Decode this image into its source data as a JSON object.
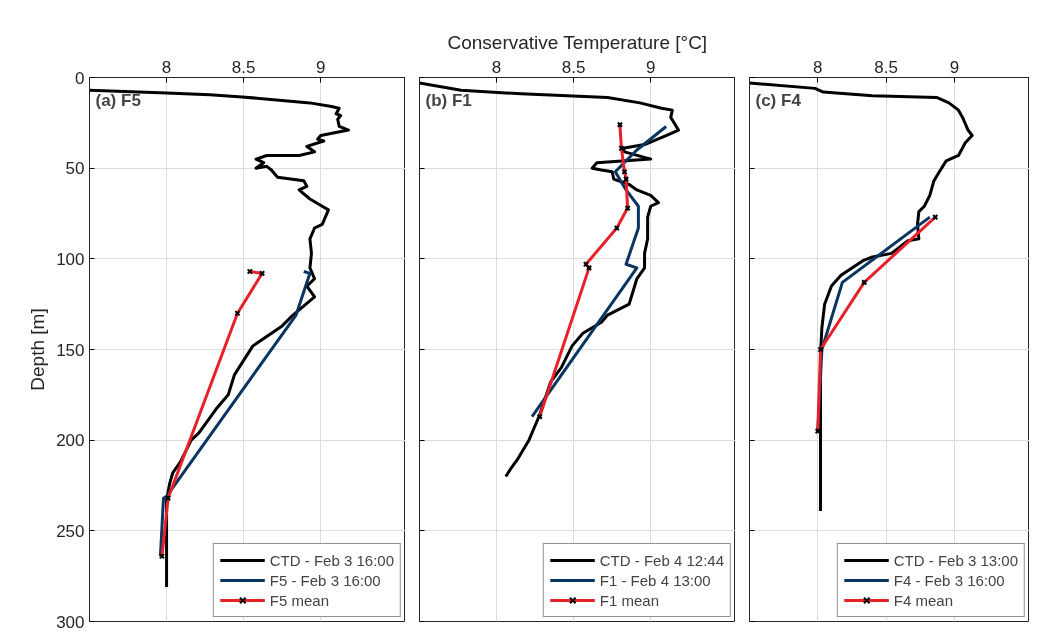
{
  "chart_data": [
    {
      "type": "line",
      "title": "(a) F5",
      "ylabel": "Depth [m]",
      "xlim": [
        7.5,
        9.55
      ],
      "xticks": [
        8,
        8.5,
        9
      ],
      "ylim": [
        300,
        0
      ],
      "yticks": [
        0,
        50,
        100,
        150,
        200,
        250,
        300
      ],
      "grid": true,
      "legend": "bottom right",
      "line_style": "solid",
      "series": [
        {
          "name": "CTD - Feb 3 16:00",
          "color": "#000000",
          "x": [
            7.5,
            8.0,
            8.28,
            8.49,
            8.93,
            9.07,
            9.12,
            9.1,
            9.13,
            9.11,
            9.12,
            9.18,
            9.0,
            8.98,
            9.02,
            8.91,
            8.96,
            8.86,
            8.65,
            8.58,
            8.63,
            8.58,
            8.65,
            8.68,
            8.72,
            8.89,
            8.91,
            8.86,
            8.93,
            9.01,
            9.05,
            9.01,
            8.96,
            8.93,
            8.94,
            8.93,
            8.96,
            8.91,
            8.96,
            8.82,
            8.75,
            8.56,
            8.53,
            8.44,
            8.4,
            8.32,
            8.21,
            8.16,
            8.09,
            8.04,
            8.02,
            8.0,
            8.0
          ],
          "values": [
            7,
            8.5,
            9.5,
            10.7,
            14,
            16,
            17,
            20,
            21,
            23,
            27,
            29,
            32,
            34,
            35,
            38,
            41,
            43,
            43,
            45,
            47,
            50,
            49,
            51,
            55,
            57,
            60,
            62,
            67,
            71,
            73,
            81,
            83,
            89,
            97,
            105,
            111,
            115,
            121,
            131,
            137,
            148,
            152,
            164,
            175,
            183,
            196,
            200,
            212,
            218,
            224,
            233,
            281
          ]
        },
        {
          "name": "F5 - Feb 3 16:00",
          "color": "#0b3561",
          "x": [
            8.89,
            8.93,
            8.84,
            8.0,
            7.98,
            7.96
          ],
          "values": [
            107,
            108,
            131,
            231,
            232,
            264
          ]
        },
        {
          "name": "F5 mean",
          "color": "#e8202a",
          "marker": "cross",
          "x": [
            8.54,
            8.62,
            8.46,
            8.01,
            7.97
          ],
          "values": [
            107,
            108,
            130,
            232,
            264
          ]
        }
      ]
    },
    {
      "type": "line",
      "title": "(b) F1",
      "xlabel": "Conservative Temperature [°C]",
      "xlim": [
        7.5,
        9.55
      ],
      "xticks": [
        8,
        8.5,
        9
      ],
      "ylim": [
        300,
        0
      ],
      "yticks": [
        0,
        50,
        100,
        150,
        200,
        250,
        300
      ],
      "tick_labels": "x",
      "grid": true,
      "legend": "bottom right",
      "line_style": "solid",
      "series": [
        {
          "name": "CTD - Feb 4 12:44",
          "color": "#000000",
          "x": [
            7.5,
            7.77,
            8.16,
            8.72,
            8.93,
            9.07,
            9.14,
            9.13,
            9.18,
            9.1,
            8.96,
            8.82,
            8.83,
            9.0,
            8.65,
            8.62,
            8.68,
            8.75,
            8.76,
            8.86,
            8.91,
            9.0,
            9.05,
            9.0,
            8.98,
            8.98,
            8.96,
            8.96,
            8.91,
            8.86,
            8.72,
            8.68,
            8.56,
            8.49,
            8.42,
            8.35,
            8.28,
            8.21,
            8.14,
            8.09,
            8.06
          ],
          "values": [
            3,
            7,
            9,
            11,
            14,
            17,
            18,
            22,
            29,
            32,
            37,
            39,
            41,
            45,
            47,
            50,
            51,
            52,
            56,
            59,
            62,
            65,
            69,
            71,
            77,
            89,
            97,
            105,
            111,
            125,
            131,
            135,
            141,
            148,
            160,
            168,
            186,
            200,
            210,
            216,
            220
          ]
        },
        {
          "name": "F1 - Feb 4 13:00",
          "color": "#0b3561",
          "x": [
            9.1,
            8.91,
            8.77,
            8.84,
            8.92,
            8.92,
            8.84,
            8.91,
            8.23
          ],
          "values": [
            27,
            40,
            52,
            62,
            71,
            83,
            103,
            105,
            187
          ]
        },
        {
          "name": "F1 mean",
          "color": "#e8202a",
          "marker": "cross",
          "x": [
            8.8,
            8.81,
            8.83,
            8.84,
            8.85,
            8.78,
            8.58,
            8.6,
            8.28
          ],
          "values": [
            26,
            39,
            52,
            56,
            72,
            83,
            103,
            105,
            187
          ]
        }
      ]
    },
    {
      "type": "line",
      "title": "(c) F4",
      "xlim": [
        7.5,
        9.55
      ],
      "xticks": [
        8,
        8.5,
        9
      ],
      "ylim": [
        300,
        0
      ],
      "yticks": [
        0,
        50,
        100,
        150,
        200,
        250,
        300
      ],
      "tick_labels": "x",
      "grid": true,
      "legend": "bottom right",
      "line_style": "solid",
      "series": [
        {
          "name": "CTD - Feb 3 13:00",
          "color": "#000000",
          "x": [
            7.5,
            7.98,
            8.04,
            8.4,
            8.87,
            8.96,
            9.03,
            9.06,
            9.1,
            9.13,
            9.08,
            9.03,
            8.94,
            8.89,
            8.85,
            8.82,
            8.78,
            8.74,
            8.73,
            8.74,
            8.66,
            8.54,
            8.4,
            8.33,
            8.17,
            8.1,
            8.05,
            8.03,
            8.02,
            8.02
          ],
          "values": [
            3,
            6,
            8,
            10,
            11,
            14,
            18,
            22,
            29,
            32,
            36,
            43,
            46,
            52,
            57,
            65,
            71,
            74,
            81,
            89,
            90,
            97,
            99,
            101,
            109,
            115,
            125,
            138,
            152,
            239
          ]
        },
        {
          "name": "F4 - Feb 3 16:00",
          "color": "#0b3561",
          "x": [
            8.82,
            8.18,
            8.03,
            8.0
          ],
          "values": [
            77,
            113,
            150,
            195
          ]
        },
        {
          "name": "F4 mean",
          "color": "#e8202a",
          "marker": "cross",
          "x": [
            8.86,
            8.34,
            8.02,
            8.0
          ],
          "values": [
            77,
            113,
            150,
            195
          ]
        }
      ]
    }
  ]
}
